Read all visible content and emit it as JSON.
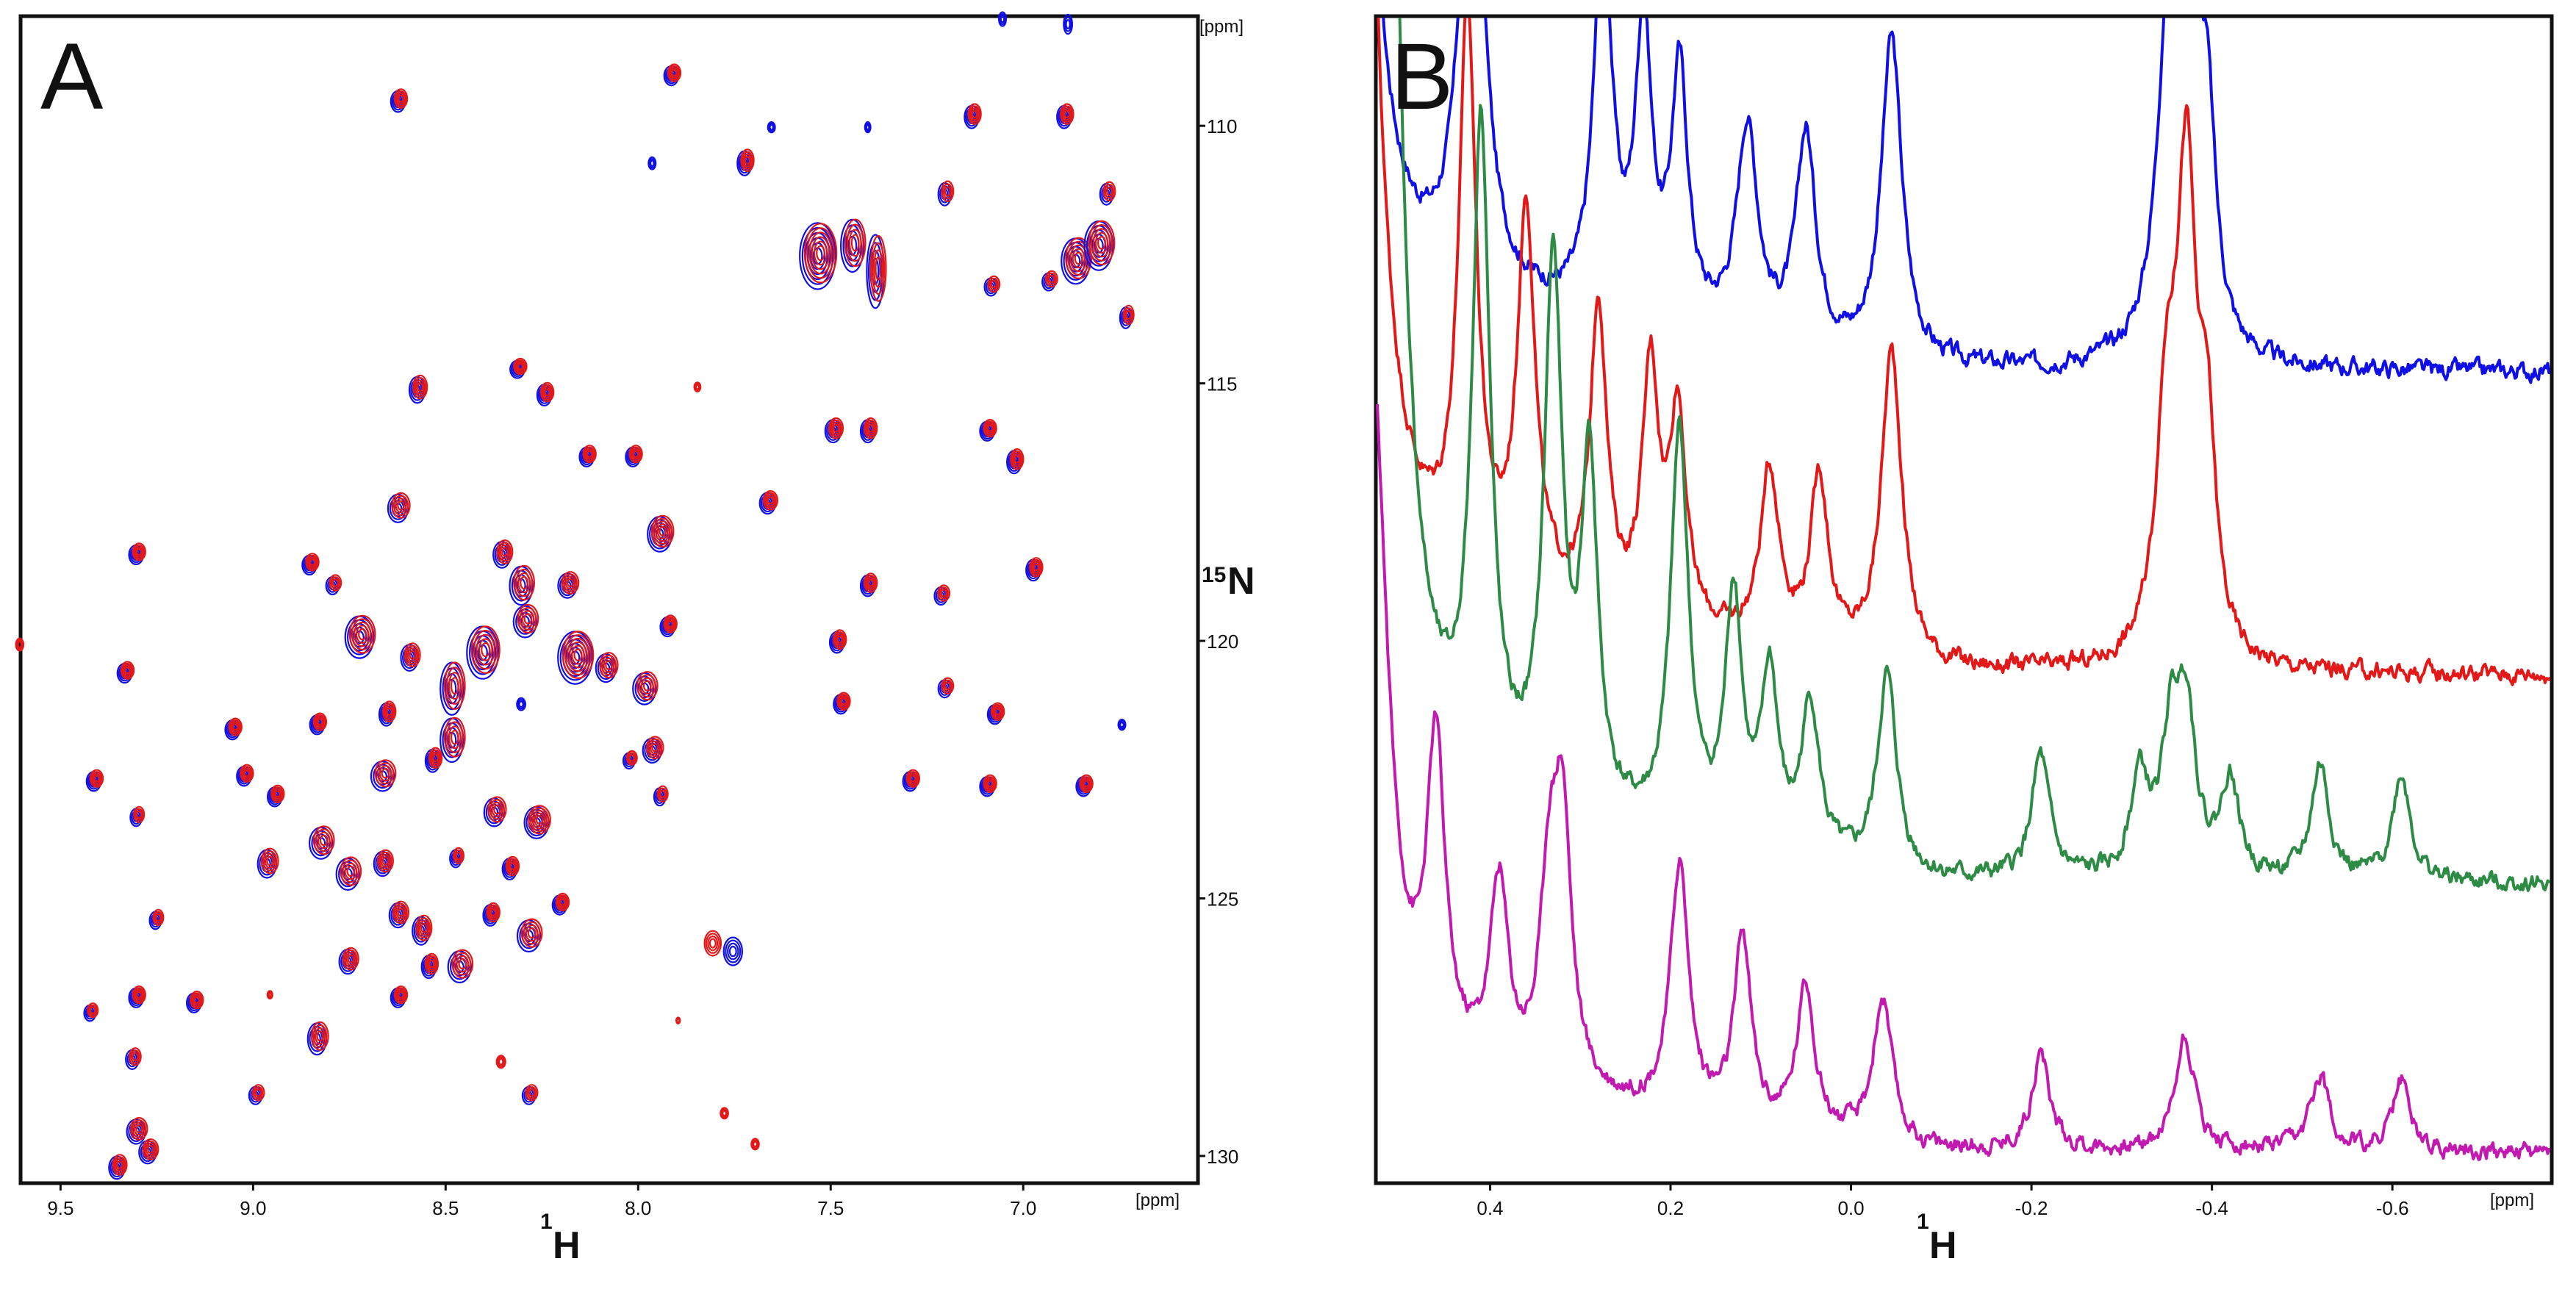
{
  "colors": {
    "blue": "#1010e6",
    "red": "#e31818",
    "green": "#2e8b46",
    "magenta": "#c21ab0",
    "frame": "#111111"
  },
  "chart_data": [
    {
      "panel": "A",
      "type": "scatter",
      "title": "",
      "xlabel": {
        "sup": "1",
        "main": "H"
      },
      "ylabel": {
        "sup": "15",
        "main": "N"
      },
      "x_unit": "[ppm]",
      "y_unit": "[ppm]",
      "xlim": [
        9.6,
        6.55
      ],
      "ylim": [
        107.9,
        130.5
      ],
      "x_ticks": [
        {
          "v": 9.5,
          "label": "9.5"
        },
        {
          "v": 9.0,
          "label": "9.0"
        },
        {
          "v": 8.5,
          "label": "8.5"
        },
        {
          "v": 8.0,
          "label": "8.0"
        },
        {
          "v": 7.5,
          "label": "7.5"
        },
        {
          "v": 7.0,
          "label": "7.0"
        }
      ],
      "y_ticks": [
        {
          "v": 110,
          "label": "110"
        },
        {
          "v": 115,
          "label": "115"
        },
        {
          "v": 120,
          "label": "120"
        },
        {
          "v": 125,
          "label": "125"
        },
        {
          "v": 130,
          "label": "130"
        }
      ],
      "series": [
        {
          "name": "blue",
          "color": "#1010e6"
        },
        {
          "name": "red",
          "color": "#e31818"
        }
      ],
      "peaks": [
        [
          8.62,
          109.5,
          1.0,
          1.2,
          "both"
        ],
        [
          7.91,
          109.0,
          1.0,
          1.1,
          "both"
        ],
        [
          7.13,
          109.8,
          1.0,
          1.3,
          "both"
        ],
        [
          6.89,
          109.8,
          1.0,
          1.3,
          "both"
        ],
        [
          7.72,
          110.7,
          1.0,
          1.4,
          "both"
        ],
        [
          7.2,
          111.3,
          0.9,
          1.3,
          "both"
        ],
        [
          6.78,
          111.3,
          0.9,
          1.2,
          "both"
        ],
        [
          7.09,
          115.9,
          1.0,
          1.1,
          "both"
        ],
        [
          7.53,
          112.5,
          2.5,
          3.8,
          "both"
        ],
        [
          7.44,
          112.3,
          1.6,
          3.0,
          "both"
        ],
        [
          7.38,
          112.8,
          1.2,
          4.2,
          "both"
        ],
        [
          6.86,
          112.6,
          2.0,
          2.6,
          "both"
        ],
        [
          6.8,
          112.3,
          2.0,
          2.8,
          "both"
        ],
        [
          7.08,
          113.1,
          0.9,
          1.0,
          "both"
        ],
        [
          6.93,
          113.0,
          0.9,
          1.0,
          "both"
        ],
        [
          6.73,
          113.7,
          0.8,
          1.2,
          "both"
        ],
        [
          8.57,
          115.1,
          1.1,
          1.5,
          "both"
        ],
        [
          8.31,
          114.7,
          1.0,
          1.0,
          "both"
        ],
        [
          8.24,
          115.2,
          1.0,
          1.2,
          "both"
        ],
        [
          7.49,
          115.9,
          1.1,
          1.3,
          "both"
        ],
        [
          7.4,
          115.9,
          1.0,
          1.3,
          "both"
        ],
        [
          8.13,
          116.4,
          1.0,
          1.1,
          "both"
        ],
        [
          8.01,
          116.4,
          1.0,
          1.1,
          "both"
        ],
        [
          7.02,
          116.5,
          1.0,
          1.3,
          "both"
        ],
        [
          8.62,
          117.4,
          1.4,
          1.6,
          "both"
        ],
        [
          7.66,
          117.3,
          1.1,
          1.2,
          "both"
        ],
        [
          7.94,
          117.9,
          1.7,
          2.0,
          "both"
        ],
        [
          9.3,
          118.3,
          1.0,
          1.1,
          "both"
        ],
        [
          8.85,
          118.5,
          1.0,
          1.1,
          "both"
        ],
        [
          8.79,
          118.9,
          0.9,
          1.0,
          "both"
        ],
        [
          8.35,
          118.3,
          1.2,
          1.5,
          "both"
        ],
        [
          8.3,
          118.9,
          1.6,
          2.2,
          "both"
        ],
        [
          8.18,
          118.9,
          1.3,
          1.4,
          "both"
        ],
        [
          7.4,
          118.9,
          1.0,
          1.2,
          "both"
        ],
        [
          7.21,
          119.1,
          0.9,
          1.0,
          "both"
        ],
        [
          6.97,
          118.6,
          1.0,
          1.2,
          "both"
        ],
        [
          8.72,
          119.9,
          2.0,
          2.4,
          "both"
        ],
        [
          8.59,
          120.3,
          1.2,
          1.5,
          "both"
        ],
        [
          8.4,
          120.2,
          2.2,
          3.0,
          "both"
        ],
        [
          8.29,
          119.6,
          1.6,
          1.8,
          "both"
        ],
        [
          8.16,
          120.3,
          2.4,
          3.0,
          "both"
        ],
        [
          8.08,
          120.5,
          1.4,
          1.6,
          "both"
        ],
        [
          7.92,
          119.7,
          1.0,
          1.1,
          "both"
        ],
        [
          7.48,
          120.0,
          1.0,
          1.2,
          "both"
        ],
        [
          9.33,
          120.6,
          1.0,
          1.1,
          "both"
        ],
        [
          8.48,
          120.9,
          1.6,
          3.0,
          "both"
        ],
        [
          7.98,
          120.9,
          1.6,
          1.8,
          "both"
        ],
        [
          7.47,
          121.2,
          1.0,
          1.1,
          "both"
        ],
        [
          7.2,
          120.9,
          0.9,
          1.0,
          "both"
        ],
        [
          7.07,
          121.4,
          1.0,
          1.1,
          "both"
        ],
        [
          9.05,
          121.7,
          1.0,
          1.1,
          "both"
        ],
        [
          8.83,
          121.6,
          1.0,
          1.1,
          "both"
        ],
        [
          8.65,
          121.4,
          1.0,
          1.3,
          "both"
        ],
        [
          8.48,
          121.9,
          1.6,
          2.5,
          "both"
        ],
        [
          7.96,
          122.1,
          1.3,
          1.4,
          "both"
        ],
        [
          9.41,
          122.7,
          1.0,
          1.1,
          "both"
        ],
        [
          9.02,
          122.6,
          1.0,
          1.1,
          "both"
        ],
        [
          8.66,
          122.6,
          1.6,
          1.7,
          "both"
        ],
        [
          8.53,
          122.3,
          1.0,
          1.3,
          "both"
        ],
        [
          8.02,
          122.3,
          0.8,
          0.9,
          "both"
        ],
        [
          7.29,
          122.7,
          1.0,
          1.1,
          "both"
        ],
        [
          7.09,
          122.8,
          1.0,
          1.1,
          "both"
        ],
        [
          6.84,
          122.8,
          1.0,
          1.1,
          "both"
        ],
        [
          8.94,
          123.0,
          1.0,
          1.1,
          "both"
        ],
        [
          8.37,
          123.3,
          1.4,
          1.6,
          "both"
        ],
        [
          8.26,
          123.5,
          1.7,
          1.8,
          "both"
        ],
        [
          7.94,
          123.0,
          0.8,
          1.0,
          "both"
        ],
        [
          9.3,
          123.4,
          0.8,
          1.0,
          "both"
        ],
        [
          8.82,
          123.9,
          1.6,
          1.8,
          "both"
        ],
        [
          8.96,
          124.3,
          1.3,
          1.6,
          "both"
        ],
        [
          8.75,
          124.5,
          1.6,
          1.8,
          "both"
        ],
        [
          8.66,
          124.3,
          1.2,
          1.4,
          "both"
        ],
        [
          8.47,
          124.2,
          0.8,
          1.0,
          "both"
        ],
        [
          8.33,
          124.4,
          1.0,
          1.2,
          "both"
        ],
        [
          8.62,
          125.3,
          1.2,
          1.4,
          "both"
        ],
        [
          8.56,
          125.6,
          1.2,
          1.6,
          "both"
        ],
        [
          8.38,
          125.3,
          1.0,
          1.2,
          "both"
        ],
        [
          8.28,
          125.7,
          1.6,
          1.8,
          "both"
        ],
        [
          8.2,
          125.1,
          1.0,
          1.1,
          "both"
        ],
        [
          9.25,
          125.4,
          0.8,
          1.0,
          "both"
        ],
        [
          8.75,
          126.2,
          1.2,
          1.4,
          "both"
        ],
        [
          8.54,
          126.3,
          1.0,
          1.3,
          "both"
        ],
        [
          8.46,
          126.3,
          1.6,
          1.8,
          "both"
        ],
        [
          7.81,
          125.9,
          1.3,
          1.6,
          "red"
        ],
        [
          7.75,
          126.0,
          1.3,
          1.6,
          "blue"
        ],
        [
          9.3,
          126.9,
          1.0,
          1.1,
          "both"
        ],
        [
          9.15,
          127.0,
          1.0,
          1.1,
          "both"
        ],
        [
          8.83,
          127.7,
          1.3,
          1.8,
          "both"
        ],
        [
          8.62,
          126.9,
          1.0,
          1.1,
          "both"
        ],
        [
          9.42,
          127.2,
          0.8,
          0.9,
          "both"
        ],
        [
          9.31,
          128.1,
          0.9,
          1.1,
          "both"
        ],
        [
          8.99,
          128.8,
          0.9,
          1.0,
          "both"
        ],
        [
          8.28,
          128.8,
          0.9,
          1.0,
          "both"
        ],
        [
          8.36,
          128.2,
          0.7,
          0.8,
          "red"
        ],
        [
          9.3,
          129.5,
          1.3,
          1.4,
          "both"
        ],
        [
          9.27,
          129.9,
          1.2,
          1.3,
          "both"
        ],
        [
          9.35,
          130.2,
          1.1,
          1.3,
          "both"
        ],
        [
          7.78,
          129.2,
          0.6,
          0.7,
          "red"
        ],
        [
          7.7,
          129.8,
          0.6,
          0.7,
          "red"
        ],
        [
          9.61,
          120.1,
          0.6,
          0.8,
          "red"
        ],
        [
          7.05,
          107.9,
          0.5,
          0.8,
          "blue"
        ],
        [
          6.88,
          108.0,
          0.6,
          1.1,
          "blue"
        ],
        [
          7.65,
          110.0,
          0.5,
          0.6,
          "blue"
        ],
        [
          7.96,
          110.7,
          0.5,
          0.7,
          "blue"
        ],
        [
          7.4,
          110.0,
          0.4,
          0.6,
          "blue"
        ],
        [
          7.85,
          115.1,
          0.5,
          0.6,
          "red"
        ],
        [
          8.3,
          121.2,
          0.6,
          0.7,
          "blue"
        ],
        [
          6.74,
          121.6,
          0.5,
          0.6,
          "blue"
        ],
        [
          8.96,
          126.9,
          0.4,
          0.5,
          "red"
        ],
        [
          7.9,
          127.4,
          0.3,
          0.4,
          "red"
        ]
      ]
    },
    {
      "panel": "B",
      "type": "line",
      "title": "",
      "xlabel": {
        "sup": "1",
        "main": "H"
      },
      "x_unit": "[ppm]",
      "xlim": [
        0.525,
        -0.775
      ],
      "x_ticks": [
        {
          "v": 0.4,
          "label": "0.4"
        },
        {
          "v": 0.2,
          "label": "0.2"
        },
        {
          "v": 0.0,
          "label": "0.0"
        },
        {
          "v": -0.2,
          "label": "-0.2"
        },
        {
          "v": -0.4,
          "label": "-0.4"
        },
        {
          "v": -0.6,
          "label": "-0.6"
        }
      ],
      "series": [
        {
          "name": "blue",
          "color": "#1010e6",
          "offset": 0,
          "start": -0.045,
          "peaks": [
            [
              0.555,
              3.0,
              0.02
            ],
            [
              0.42,
              1.4,
              0.015
            ],
            [
              0.275,
              1.0,
              0.012
            ],
            [
              0.23,
              0.75,
              0.011
            ],
            [
              0.19,
              0.65,
              0.011
            ],
            [
              0.115,
              0.55,
              0.014
            ],
            [
              0.05,
              0.55,
              0.013
            ],
            [
              -0.045,
              0.85,
              0.014
            ],
            [
              -0.352,
              0.75,
              0.015
            ],
            [
              -0.372,
              1.2,
              0.013
            ],
            [
              -0.395,
              0.5,
              0.011
            ]
          ]
        },
        {
          "name": "red",
          "color": "#e31818",
          "offset": 0.108,
          "start": 0.45,
          "peaks": [
            [
              0.55,
              4.0,
              0.02
            ],
            [
              0.425,
              1.45,
              0.012
            ],
            [
              0.36,
              1.0,
              0.012
            ],
            [
              0.28,
              0.8,
              0.011
            ],
            [
              0.222,
              0.65,
              0.011
            ],
            [
              0.192,
              0.55,
              0.011
            ],
            [
              0.09,
              0.45,
              0.013
            ],
            [
              0.035,
              0.45,
              0.012
            ],
            [
              -0.045,
              0.82,
              0.014
            ],
            [
              -0.35,
              0.6,
              0.014
            ],
            [
              -0.372,
              1.2,
              0.013
            ],
            [
              -0.395,
              0.5,
              0.011
            ]
          ]
        },
        {
          "name": "green",
          "color": "#2e8b46",
          "offset": 0.275,
          "start": 0.425,
          "peaks": [
            [
              0.52,
              4.0,
              0.02
            ],
            [
              0.41,
              1.7,
              0.012
            ],
            [
              0.33,
              1.4,
              0.012
            ],
            [
              0.29,
              0.9,
              0.011
            ],
            [
              0.19,
              1.05,
              0.012
            ],
            [
              0.13,
              0.65,
              0.011
            ],
            [
              0.09,
              0.45,
              0.011
            ],
            [
              0.045,
              0.4,
              0.012
            ],
            [
              -0.04,
              0.52,
              0.013
            ],
            [
              -0.21,
              0.32,
              0.012
            ],
            [
              -0.32,
              0.25,
              0.012
            ],
            [
              -0.355,
              0.35,
              0.013
            ],
            [
              -0.372,
              0.4,
              0.012
            ],
            [
              -0.42,
              0.25,
              0.012
            ],
            [
              -0.52,
              0.3,
              0.012
            ],
            [
              -0.61,
              0.28,
              0.012
            ]
          ]
        },
        {
          "name": "magenta",
          "color": "#c21ab0",
          "offset": 0.57,
          "start": 0.525,
          "peaks": [
            [
              0.53,
              1.8,
              0.02
            ],
            [
              0.46,
              0.8,
              0.012
            ],
            [
              0.39,
              0.5,
              0.012
            ],
            [
              0.335,
              0.45,
              0.011
            ],
            [
              0.32,
              0.7,
              0.012
            ],
            [
              0.19,
              0.65,
              0.012
            ],
            [
              0.12,
              0.48,
              0.011
            ],
            [
              0.05,
              0.38,
              0.012
            ],
            [
              -0.035,
              0.38,
              0.013
            ],
            [
              -0.21,
              0.25,
              0.012
            ],
            [
              -0.37,
              0.3,
              0.013
            ],
            [
              -0.52,
              0.2,
              0.012
            ],
            [
              -0.61,
              0.18,
              0.012
            ]
          ]
        }
      ]
    }
  ]
}
